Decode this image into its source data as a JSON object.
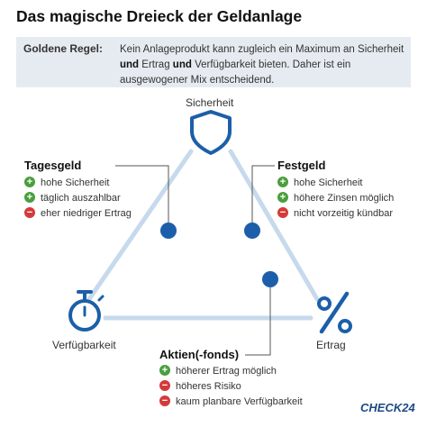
{
  "title": "Das magische Dreieck der Geldanlage",
  "rule": {
    "label": "Goldene Regel:",
    "text_segments": [
      {
        "text": "Kein Anlageprodukt kann zugleich ein Maximum an Sicherheit ",
        "bold": false
      },
      {
        "text": "und",
        "bold": true
      },
      {
        "text": " Ertrag ",
        "bold": false
      },
      {
        "text": "und",
        "bold": true
      },
      {
        "text": " Verfügbarkeit bieten. Daher ist ein ausgewogener Mix entscheidend.",
        "bold": false
      }
    ]
  },
  "nodes": {
    "top": "Sicherheit",
    "left": "Verfügbarkeit",
    "right": "Ertrag"
  },
  "colors": {
    "triangle": "#c7d9ec",
    "accent_blue": "#1c5fa8",
    "dot": "#1d5eaa",
    "plus": "#4b9e3e",
    "minus": "#d43a39",
    "box": "#e6ebf1"
  },
  "icons": {
    "top": "shield-icon",
    "left": "stopwatch-icon",
    "right": "percent-icon"
  },
  "groups": {
    "tagesgeld": {
      "title": "Tagesgeld",
      "items": [
        {
          "type": "plus",
          "text": "hohe Sicherheit"
        },
        {
          "type": "plus",
          "text": "täglich auszahlbar"
        },
        {
          "type": "minus",
          "text": "eher niedriger Ertrag"
        }
      ]
    },
    "festgeld": {
      "title": "Festgeld",
      "items": [
        {
          "type": "plus",
          "text": "hohe Sicherheit"
        },
        {
          "type": "plus",
          "text": "höhere Zinsen möglich"
        },
        {
          "type": "minus",
          "text": "nicht vorzeitig kündbar"
        }
      ]
    },
    "aktien": {
      "title": "Aktien(-fonds)",
      "items": [
        {
          "type": "plus",
          "text": "höherer Ertrag möglich"
        },
        {
          "type": "minus",
          "text": "höheres Risiko"
        },
        {
          "type": "minus",
          "text": "kaum planbare Verfügbarkeit"
        }
      ]
    }
  },
  "brand": "CHECK24"
}
